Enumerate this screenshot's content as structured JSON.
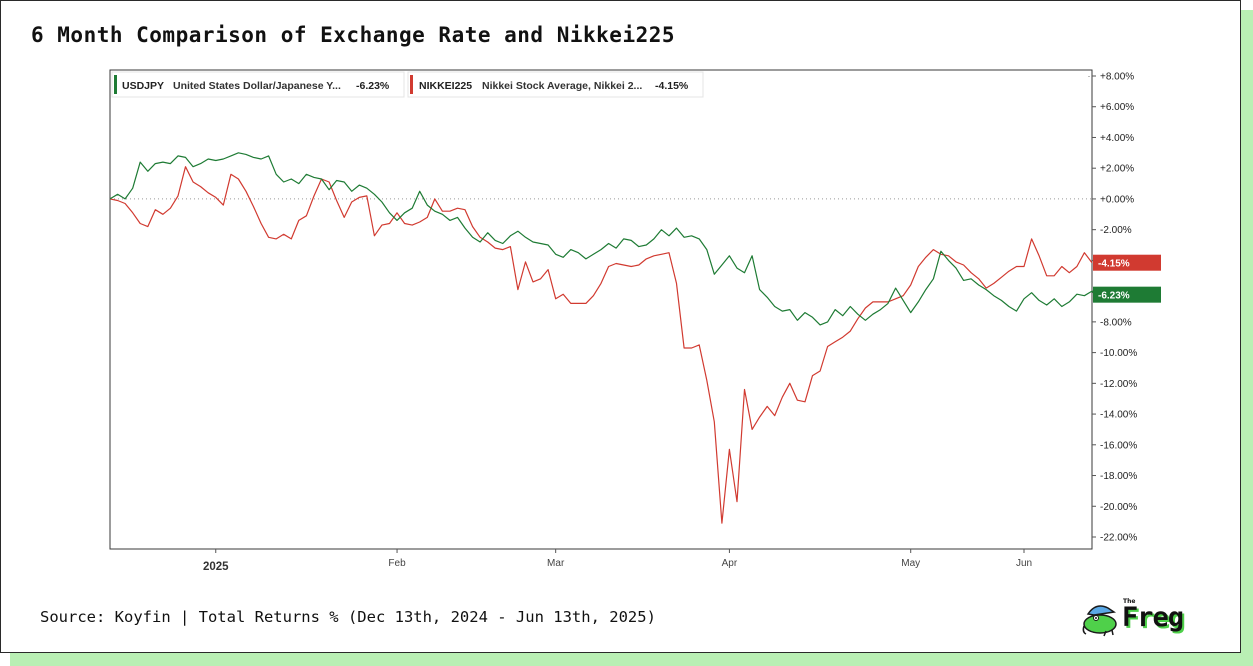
{
  "title": "6 Month Comparison of Exchange Rate and Nikkei225",
  "source": "Source: Koyfin | Total Returns % (Dec 13th, 2024 - Jun 13th, 2025)",
  "logo": {
    "small": "The",
    "word": "Freg"
  },
  "chart_data": {
    "type": "line",
    "title": "6 Month Comparison of Exchange Rate and Nikkei225",
    "ylim": [
      -23,
      8
    ],
    "yticks": [
      8,
      6,
      4,
      2,
      0,
      -2,
      -4,
      -6,
      -8,
      -10,
      -12,
      -14,
      -16,
      -18,
      -20,
      -22
    ],
    "ytick_labels": [
      "+8.00%",
      "+6.00%",
      "+4.00%",
      "+2.00%",
      "+0.00%",
      "-2.00%",
      "-4.00%",
      "-6.00%",
      "-8.00%",
      "-10.00%",
      "-12.00%",
      "-14.00%",
      "-16.00%",
      "-18.00%",
      "-20.00%",
      "-22.00%"
    ],
    "x_count": 130,
    "xticks": [
      {
        "label": "2025",
        "index": 14,
        "bold": true
      },
      {
        "label": "Feb",
        "index": 38,
        "bold": false
      },
      {
        "label": "Mar",
        "index": 59,
        "bold": false
      },
      {
        "label": "Apr",
        "index": 82,
        "bold": false
      },
      {
        "label": "May",
        "index": 106,
        "bold": false
      },
      {
        "label": "Jun",
        "index": 130,
        "bold": false
      }
    ],
    "series": [
      {
        "name": "USDJPY",
        "description": "United States Dollar/Japanese Y...",
        "last_label": "-6.23%",
        "color": "#1e7b34",
        "values": [
          0.0,
          0.3,
          0.0,
          0.7,
          2.4,
          1.8,
          2.3,
          2.4,
          2.3,
          2.8,
          2.7,
          2.1,
          2.3,
          2.6,
          2.5,
          2.6,
          2.8,
          3.0,
          2.9,
          2.7,
          2.6,
          2.8,
          1.6,
          1.1,
          1.3,
          1.0,
          1.6,
          1.4,
          1.3,
          0.6,
          1.2,
          1.1,
          0.5,
          0.9,
          0.7,
          0.3,
          -0.2,
          -0.9,
          -1.4,
          -0.9,
          -0.6,
          0.5,
          -0.4,
          -0.8,
          -1.0,
          -1.4,
          -1.2,
          -1.9,
          -2.5,
          -2.8,
          -2.2,
          -2.7,
          -2.9,
          -2.4,
          -2.1,
          -2.5,
          -2.8,
          -2.9,
          -3.0,
          -3.6,
          -3.8,
          -3.3,
          -3.5,
          -3.9,
          -3.6,
          -3.3,
          -2.9,
          -3.2,
          -2.6,
          -2.7,
          -3.1,
          -3.0,
          -2.6,
          -2.0,
          -2.4,
          -1.9,
          -2.5,
          -2.4,
          -2.6,
          -3.3,
          -4.9,
          -4.3,
          -3.7,
          -4.5,
          -4.8,
          -3.7,
          -5.9,
          -6.4,
          -7.0,
          -7.3,
          -7.2,
          -7.9,
          -7.4,
          -7.7,
          -8.2,
          -8.0,
          -7.2,
          -7.6,
          -7.0,
          -7.5,
          -7.9,
          -7.5,
          -7.2,
          -6.8,
          -5.8,
          -6.6,
          -7.4,
          -6.7,
          -5.9,
          -5.2,
          -3.4,
          -4.0,
          -4.5,
          -5.3,
          -5.2,
          -5.6,
          -5.9,
          -6.3,
          -6.6,
          -7.0,
          -7.3,
          -6.5,
          -6.1,
          -6.6,
          -6.9,
          -6.5,
          -7.0,
          -6.7,
          -6.2,
          -6.3,
          -6.0,
          -6.6,
          -6.23
        ]
      },
      {
        "name": "NIKKEI225",
        "description": "Nikkei Stock Average, Nikkei 2...",
        "last_label": "-4.15%",
        "color": "#d13a30",
        "values": [
          0.0,
          -0.1,
          -0.3,
          -0.9,
          -1.6,
          -1.8,
          -0.7,
          -1.0,
          -0.6,
          0.2,
          2.1,
          1.1,
          0.8,
          0.4,
          0.1,
          -0.4,
          1.6,
          1.3,
          0.5,
          -0.5,
          -1.6,
          -2.5,
          -2.6,
          -2.3,
          -2.6,
          -1.4,
          -1.1,
          0.2,
          1.3,
          1.1,
          -0.1,
          -1.2,
          -0.2,
          0.1,
          0.2,
          -2.4,
          -1.7,
          -1.6,
          -0.9,
          -1.6,
          -1.7,
          -1.5,
          -1.2,
          0.0,
          -0.8,
          -0.8,
          -0.6,
          -0.7,
          -1.8,
          -2.5,
          -2.8,
          -3.2,
          -3.3,
          -3.1,
          -5.9,
          -4.1,
          -5.4,
          -5.2,
          -4.6,
          -6.5,
          -6.2,
          -6.8,
          -6.8,
          -6.8,
          -6.3,
          -5.5,
          -4.4,
          -4.2,
          -4.3,
          -4.4,
          -4.3,
          -3.9,
          -3.7,
          -3.6,
          -3.5,
          -5.5,
          -9.7,
          -9.7,
          -9.5,
          -11.8,
          -14.5,
          -21.1,
          -16.3,
          -19.7,
          -12.4,
          -15.0,
          -14.2,
          -13.5,
          -14.1,
          -12.9,
          -12.0,
          -13.1,
          -13.2,
          -11.5,
          -11.2,
          -9.6,
          -9.3,
          -9.0,
          -8.6,
          -7.8,
          -7.1,
          -6.7,
          -6.7,
          -6.7,
          -6.5,
          -6.3,
          -5.6,
          -4.4,
          -3.8,
          -3.3,
          -3.6,
          -3.7,
          -4.1,
          -4.3,
          -4.8,
          -5.2,
          -5.8,
          -5.5,
          -5.1,
          -4.7,
          -4.4,
          -4.4,
          -2.6,
          -3.7,
          -5.0,
          -5.0,
          -4.4,
          -4.8,
          -4.4,
          -3.5,
          -4.15
        ]
      }
    ]
  }
}
